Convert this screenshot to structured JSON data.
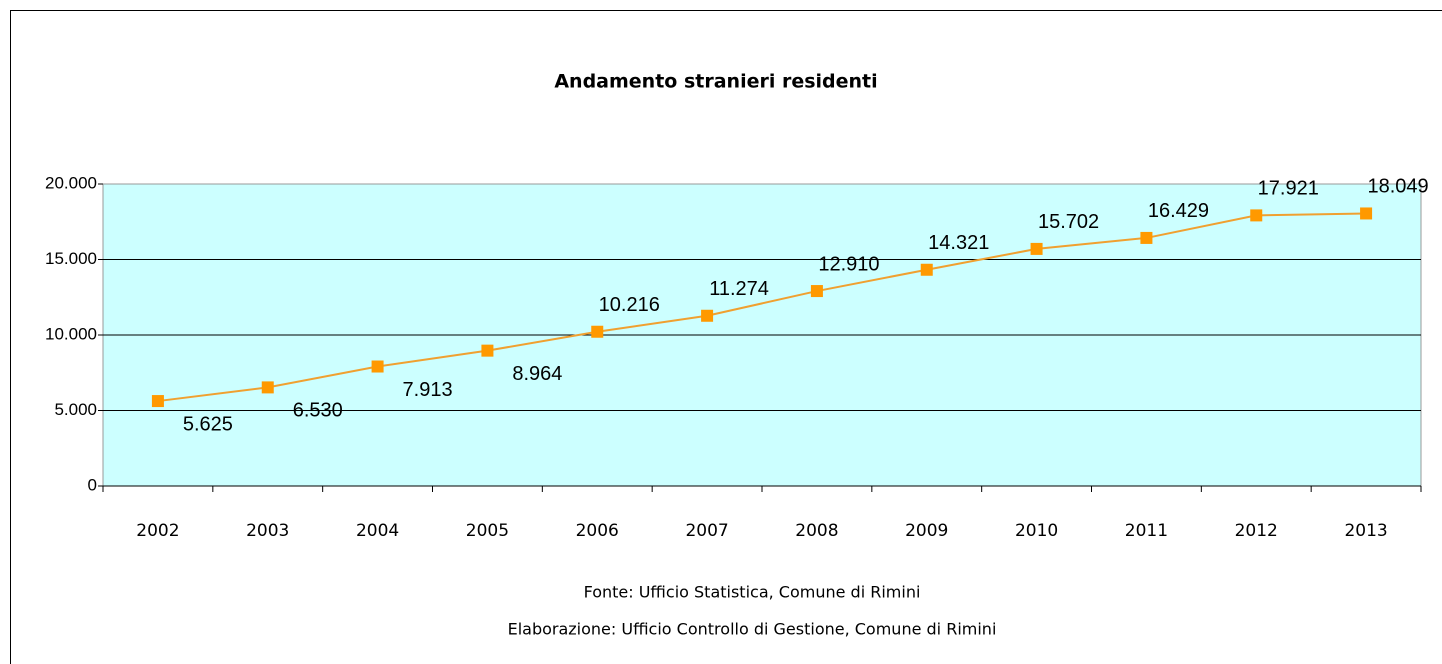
{
  "chart_data": {
    "type": "line",
    "title": "Andamento stranieri residenti",
    "categories": [
      "2002",
      "2003",
      "2004",
      "2005",
      "2006",
      "2007",
      "2008",
      "2009",
      "2010",
      "2011",
      "2012",
      "2013"
    ],
    "series": [
      {
        "name": "Stranieri residenti",
        "color": "#ff9900",
        "values": [
          5625,
          6530,
          7913,
          8964,
          10216,
          11274,
          12910,
          14321,
          15702,
          16429,
          17921,
          18049
        ],
        "value_labels": [
          "5.625",
          "6.530",
          "7.913",
          "8.964",
          "10.216",
          "11.274",
          "12.910",
          "14.321",
          "15.702",
          "16.429",
          "17.921",
          "18.049"
        ]
      }
    ],
    "ylim": [
      0,
      20000
    ],
    "yticks": [
      0,
      {
        "value": 5000,
        "label": "5.000"
      },
      {
        "value": 10000,
        "label": "10.000"
      },
      {
        "value": 15000,
        "label": "15.000"
      },
      {
        "value": 20000,
        "label": "20.000"
      }
    ],
    "grid": true,
    "annotations": [
      "Fonte: Ufficio Statistica, Comune di Rimini",
      "Elaborazione: Ufficio Controllo di Gestione, Comune di Rimini"
    ]
  }
}
